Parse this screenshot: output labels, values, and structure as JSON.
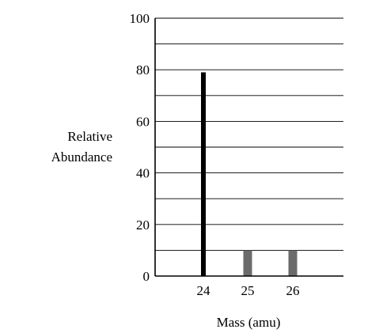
{
  "chart_data": {
    "type": "bar",
    "title": "",
    "xlabel": "Mass (amu)",
    "ylabel_lines": [
      "Relative",
      "Abundance"
    ],
    "ylim": [
      0,
      100
    ],
    "y_ticks": [
      0,
      20,
      40,
      60,
      80,
      100
    ],
    "grid_step": 10,
    "grid": true,
    "categories": [
      "24",
      "25",
      "26"
    ],
    "values": [
      79,
      10,
      10
    ],
    "colors": [
      "#000000",
      "#6b6b6b",
      "#6b6b6b"
    ]
  }
}
